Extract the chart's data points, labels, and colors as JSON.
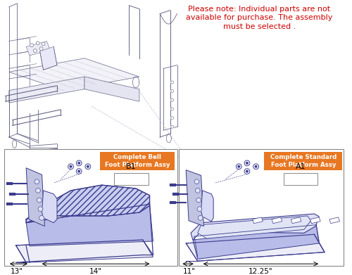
{
  "bg_color": "#ffffff",
  "note_line1": "Please note: Individual parts are not",
  "note_line2": "available for purchase. The assembly",
  "note_line3": "must be selected .",
  "note_color": "#cc0000",
  "note_fontsize": 8.0,
  "box1_label_orange": "Complete Bell\nFoot Platform Assy",
  "box1_label_id": "B1",
  "box2_label_orange": "Complete Standard\nFoot Platform Assy",
  "box2_label_id": "A1",
  "dim1a": "13\"",
  "dim1b": "14\"",
  "dim2a": "11\"",
  "dim2b": "12.25\"",
  "lc": "#3a3a8c",
  "lc_light": "#6666aa",
  "orange_color": "#e87722",
  "platform_fill_hatch": "#c8cef0",
  "platform_fill_top": "#dde0f5",
  "platform_fill_front": "#b8bce8",
  "platform_fill_side": "#a0a4d8",
  "bracket_fill": "#8890c8",
  "border_color": "#888888",
  "machine_line_color": "#666688",
  "machine_lw": 0.55
}
